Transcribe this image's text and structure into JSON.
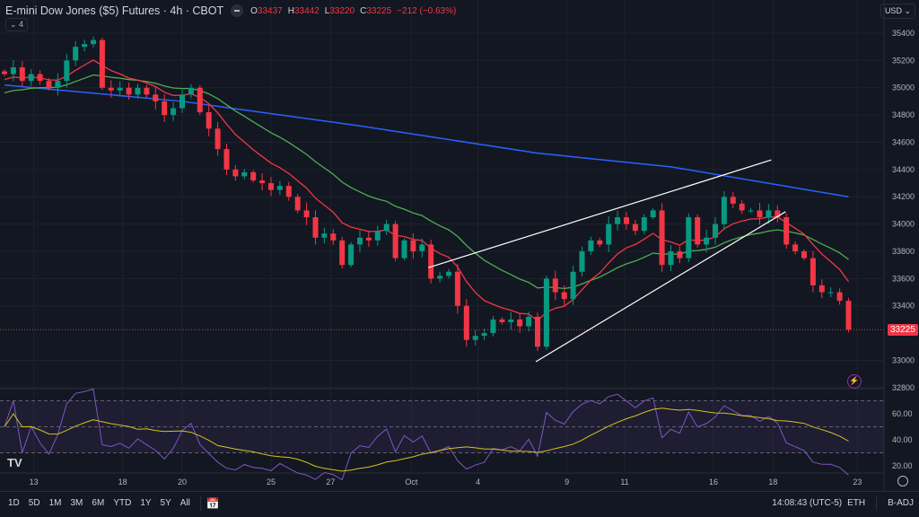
{
  "header": {
    "title": "E-mini Dow Jones ($5) Futures · 4h · CBOT",
    "o_label": "O",
    "o": "33437",
    "h_label": "H",
    "h": "33442",
    "l_label": "L",
    "l": "33220",
    "c_label": "C",
    "c": "33225",
    "change": "−212 (−0.63%)",
    "indicators_count": "4"
  },
  "currency": "USD",
  "last_price": "33225",
  "logo": "TV",
  "bottom": {
    "ranges": [
      "1D",
      "5D",
      "1M",
      "3M",
      "6M",
      "YTD",
      "1Y",
      "5Y",
      "All"
    ],
    "clock": "14:08:43 (UTC-5)",
    "session": "ETH",
    "adjust": "B-ADJ"
  },
  "colors": {
    "up": "#089981",
    "down": "#f23645",
    "ema_fast": "#f23645",
    "ema_slow": "#4caf50",
    "ma_long": "#2962ff",
    "rsi": "#7e57c2",
    "rsi_ma": "#d8c21a"
  },
  "chart_data": {
    "type": "candlestick",
    "title": "E-mini Dow Jones ($5) Futures · 4h · CBOT",
    "y_ticks": [
      35400,
      35200,
      35000,
      34800,
      34600,
      34400,
      34200,
      34000,
      33800,
      33600,
      33400,
      33000,
      32800
    ],
    "ylim": [
      32800,
      35400
    ],
    "x_ticks": [
      {
        "label": "13",
        "bar": 3.3
      },
      {
        "label": "18",
        "bar": 13.3
      },
      {
        "label": "20",
        "bar": 20
      },
      {
        "label": "25",
        "bar": 30
      },
      {
        "label": "27",
        "bar": 36.7
      },
      {
        "label": "Oct",
        "bar": 45.8
      },
      {
        "label": "4",
        "bar": 53.3
      },
      {
        "label": "9",
        "bar": 63.3
      },
      {
        "label": "11",
        "bar": 69.8
      },
      {
        "label": "16",
        "bar": 79.8
      },
      {
        "label": "18",
        "bar": 86.5
      },
      {
        "label": "23",
        "bar": 96
      }
    ],
    "closes": [
      35100,
      35150,
      35050,
      35100,
      35050,
      35000,
      35050,
      35200,
      35300,
      35320,
      35350,
      35000,
      34980,
      35000,
      34950,
      35000,
      34950,
      34900,
      34800,
      34850,
      34950,
      35000,
      34820,
      34700,
      34550,
      34400,
      34350,
      34380,
      34320,
      34300,
      34250,
      34280,
      34200,
      34100,
      34050,
      33900,
      33930,
      33880,
      33700,
      33850,
      33900,
      33880,
      33950,
      34000,
      33750,
      33880,
      33800,
      33850,
      33600,
      33620,
      33650,
      33400,
      33150,
      33180,
      33200,
      33300,
      33280,
      33300,
      33250,
      33320,
      33100,
      33600,
      33500,
      33450,
      33650,
      33800,
      33880,
      33850,
      34000,
      34050,
      34000,
      33950,
      34050,
      34100,
      33700,
      33800,
      33750,
      34050,
      33850,
      33900,
      34000,
      34200,
      34150,
      34100,
      34100,
      34050,
      34100,
      34050,
      33850,
      33800,
      33750,
      33550,
      33500,
      33500,
      33437,
      33225
    ],
    "ma_long": [
      {
        "bar": 0,
        "value": 35020
      },
      {
        "bar": 20,
        "value": 34900
      },
      {
        "bar": 40,
        "value": 34720
      },
      {
        "bar": 60,
        "value": 34520
      },
      {
        "bar": 75,
        "value": 34420
      },
      {
        "bar": 95,
        "value": 34200
      }
    ],
    "trendlines": [
      {
        "from": {
          "bar": 47.7,
          "price": 33680
        },
        "to": {
          "bar": 86.3,
          "price": 34470
        }
      },
      {
        "from": {
          "bar": 59.8,
          "price": 32990
        },
        "to": {
          "bar": 87.9,
          "price": 34090
        }
      }
    ],
    "rsi": {
      "y_ticks": [
        60,
        40,
        20
      ],
      "upper": 70,
      "lower": 30,
      "ylim": [
        15,
        75
      ]
    }
  }
}
